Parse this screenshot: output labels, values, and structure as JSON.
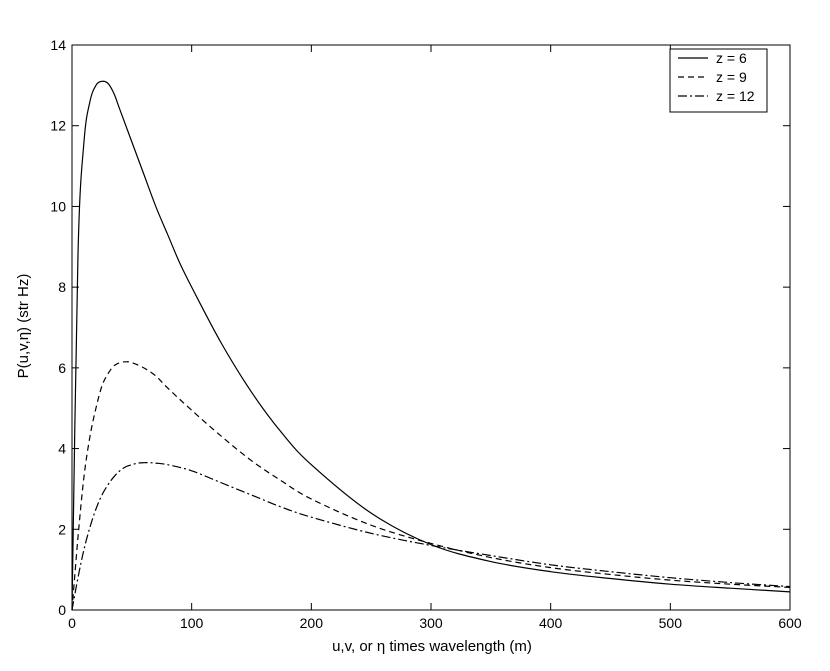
{
  "chart_data": {
    "type": "line",
    "title": "",
    "xlabel": "u,v, or η times wavelength (m)",
    "ylabel": "P(u,v,η) (str Hz)",
    "xlim": [
      0,
      600
    ],
    "ylim": [
      0,
      14
    ],
    "xticks": [
      0,
      100,
      200,
      300,
      400,
      500,
      600
    ],
    "yticks": [
      0,
      2,
      4,
      6,
      8,
      10,
      12,
      14
    ],
    "xtick_labels": [
      "0",
      "100",
      "200",
      "300",
      "400",
      "500",
      "600"
    ],
    "ytick_labels": [
      "0",
      "2",
      "4",
      "6",
      "8",
      "10",
      "12",
      "14"
    ],
    "grid": false,
    "legend_position": "top-right",
    "series": [
      {
        "name": "z = 6",
        "style": "solid",
        "color": "#000000",
        "x": [
          0,
          5,
          10,
          15,
          20,
          25,
          30,
          35,
          40,
          50,
          60,
          70,
          80,
          90,
          100,
          125,
          150,
          175,
          200,
          250,
          300,
          350,
          400,
          450,
          500,
          550,
          600
        ],
        "y": [
          0,
          8.8,
          11.6,
          12.6,
          13.0,
          13.1,
          13.05,
          12.8,
          12.4,
          11.6,
          10.8,
          10.0,
          9.3,
          8.6,
          8.0,
          6.6,
          5.4,
          4.4,
          3.6,
          2.4,
          1.62,
          1.2,
          0.95,
          0.78,
          0.64,
          0.54,
          0.45
        ]
      },
      {
        "name": "z = 9",
        "style": "dashed",
        "color": "#000000",
        "x": [
          0,
          5,
          10,
          15,
          20,
          25,
          30,
          35,
          40,
          45,
          50,
          60,
          70,
          80,
          100,
          125,
          150,
          175,
          200,
          250,
          300,
          350,
          400,
          450,
          500,
          550,
          600
        ],
        "y": [
          0,
          1.8,
          3.3,
          4.3,
          5.0,
          5.55,
          5.85,
          6.05,
          6.13,
          6.15,
          6.13,
          6.0,
          5.8,
          5.5,
          4.95,
          4.3,
          3.7,
          3.2,
          2.75,
          2.1,
          1.65,
          1.3,
          1.05,
          0.88,
          0.74,
          0.64,
          0.56
        ]
      },
      {
        "name": "z = 12",
        "style": "dash-dot",
        "color": "#000000",
        "x": [
          0,
          5,
          10,
          15,
          20,
          25,
          30,
          35,
          40,
          45,
          50,
          55,
          60,
          65,
          70,
          80,
          100,
          125,
          150,
          175,
          200,
          250,
          300,
          350,
          400,
          450,
          500,
          550,
          600
        ],
        "y": [
          0,
          0.8,
          1.5,
          2.05,
          2.5,
          2.85,
          3.1,
          3.3,
          3.45,
          3.55,
          3.6,
          3.64,
          3.65,
          3.65,
          3.64,
          3.6,
          3.45,
          3.15,
          2.85,
          2.55,
          2.3,
          1.9,
          1.6,
          1.35,
          1.12,
          0.95,
          0.8,
          0.68,
          0.58
        ]
      }
    ]
  }
}
